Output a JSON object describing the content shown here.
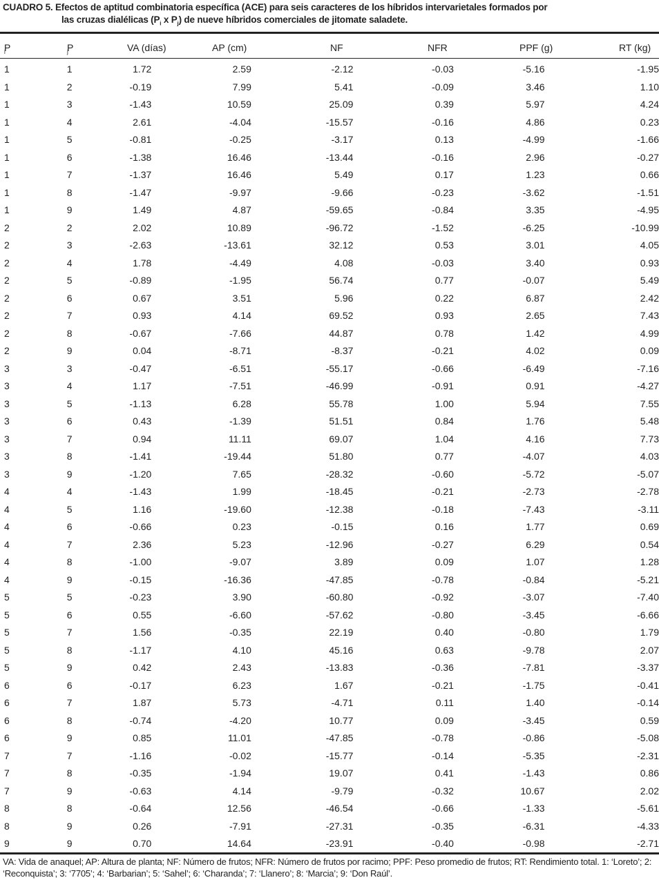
{
  "title": {
    "line1": "CUADRO 5. Efectos de aptitud combinatoria específica (ACE) para seis caracteres de los híbridos intervarietales formados por",
    "line2_a": "las cruzas dialélicas (P",
    "line2_sub1": "i",
    "line2_b": " x P",
    "line2_sub2": "j",
    "line2_c": ") de nueve híbridos comerciales de jitomate saladete."
  },
  "headers": {
    "pi": "P",
    "pi_sub": "i",
    "pj": "P",
    "pj_sub": "j",
    "va": "VA (días)",
    "ap": "AP (cm)",
    "nf": "NF",
    "nfr": "NFR",
    "ppf": "PPF (g)",
    "rt": "RT (kg)"
  },
  "rows": [
    [
      "1",
      "1",
      "1.72",
      "2.59",
      "-2.12",
      "-0.03",
      "-5.16",
      "-1.95"
    ],
    [
      "1",
      "2",
      "-0.19",
      "7.99",
      "5.41",
      "-0.09",
      "3.46",
      "1.10"
    ],
    [
      "1",
      "3",
      "-1.43",
      "10.59",
      "25.09",
      "0.39",
      "5.97",
      "4.24"
    ],
    [
      "1",
      "4",
      "2.61",
      "-4.04",
      "-15.57",
      "-0.16",
      "4.86",
      "0.23"
    ],
    [
      "1",
      "5",
      "-0.81",
      "-0.25",
      "-3.17",
      "0.13",
      "-4.99",
      "-1.66"
    ],
    [
      "1",
      "6",
      "-1.38",
      "16.46",
      "-13.44",
      "-0.16",
      "2.96",
      "-0.27"
    ],
    [
      "1",
      "7",
      "-1.37",
      "16.46",
      "5.49",
      "0.17",
      "1.23",
      "0.66"
    ],
    [
      "1",
      "8",
      "-1.47",
      "-9.97",
      "-9.66",
      "-0.23",
      "-3.62",
      "-1.51"
    ],
    [
      "1",
      "9",
      "1.49",
      "4.87",
      "-59.65",
      "-0.84",
      "3.35",
      "-4.95"
    ],
    [
      "2",
      "2",
      "2.02",
      "10.89",
      "-96.72",
      "-1.52",
      "-6.25",
      "-10.99"
    ],
    [
      "2",
      "3",
      "-2.63",
      "-13.61",
      "32.12",
      "0.53",
      "3.01",
      "4.05"
    ],
    [
      "2",
      "4",
      "1.78",
      "-4.49",
      "4.08",
      "-0.03",
      "3.40",
      "0.93"
    ],
    [
      "2",
      "5",
      "-0.89",
      "-1.95",
      "56.74",
      "0.77",
      "-0.07",
      "5.49"
    ],
    [
      "2",
      "6",
      "0.67",
      "3.51",
      "5.96",
      "0.22",
      "6.87",
      "2.42"
    ],
    [
      "2",
      "7",
      "0.93",
      "4.14",
      "69.52",
      "0.93",
      "2.65",
      "7.43"
    ],
    [
      "2",
      "8",
      "-0.67",
      "-7.66",
      "44.87",
      "0.78",
      "1.42",
      "4.99"
    ],
    [
      "2",
      "9",
      "0.04",
      "-8.71",
      "-8.37",
      "-0.21",
      "4.02",
      "0.09"
    ],
    [
      "3",
      "3",
      "-0.47",
      "-6.51",
      "-55.17",
      "-0.66",
      "-6.49",
      "-7.16"
    ],
    [
      "3",
      "4",
      "1.17",
      "-7.51",
      "-46.99",
      "-0.91",
      "0.91",
      "-4.27"
    ],
    [
      "3",
      "5",
      "-1.13",
      "6.28",
      "55.78",
      "1.00",
      "5.94",
      "7.55"
    ],
    [
      "3",
      "6",
      "0.43",
      "-1.39",
      "51.51",
      "0.84",
      "1.76",
      "5.48"
    ],
    [
      "3",
      "7",
      "0.94",
      "11.11",
      "69.07",
      "1.04",
      "4.16",
      "7.73"
    ],
    [
      "3",
      "8",
      "-1.41",
      "-19.44",
      "51.80",
      "0.77",
      "-4.07",
      "4.03"
    ],
    [
      "3",
      "9",
      "-1.20",
      "7.65",
      "-28.32",
      "-0.60",
      "-5.72",
      "-5.07"
    ],
    [
      "4",
      "4",
      "-1.43",
      "1.99",
      "-18.45",
      "-0.21",
      "-2.73",
      "-2.78"
    ],
    [
      "4",
      "5",
      "1.16",
      "-19.60",
      "-12.38",
      "-0.18",
      "-7.43",
      "-3.11"
    ],
    [
      "4",
      "6",
      "-0.66",
      "0.23",
      "-0.15",
      "0.16",
      "1.77",
      "0.69"
    ],
    [
      "4",
      "7",
      "2.36",
      "5.23",
      "-12.96",
      "-0.27",
      "6.29",
      "0.54"
    ],
    [
      "4",
      "8",
      "-1.00",
      "-9.07",
      "3.89",
      "0.09",
      "1.07",
      "1.28"
    ],
    [
      "4",
      "9",
      "-0.15",
      "-16.36",
      "-47.85",
      "-0.78",
      "-0.84",
      "-5.21"
    ],
    [
      "5",
      "5",
      "-0.23",
      "3.90",
      "-60.80",
      "-0.92",
      "-3.07",
      "-7.40"
    ],
    [
      "5",
      "6",
      "0.55",
      "-6.60",
      "-57.62",
      "-0.80",
      "-3.45",
      "-6.66"
    ],
    [
      "5",
      "7",
      "1.56",
      "-0.35",
      "22.19",
      "0.40",
      "-0.80",
      "1.79"
    ],
    [
      "5",
      "8",
      "-1.17",
      "4.10",
      "45.16",
      "0.63",
      "-9.78",
      "2.07"
    ],
    [
      "5",
      "9",
      "0.42",
      "2.43",
      "-13.83",
      "-0.36",
      "-7.81",
      "-3.37"
    ],
    [
      "6",
      "6",
      "-0.17",
      "6.23",
      "1.67",
      "-0.21",
      "-1.75",
      "-0.41"
    ],
    [
      "6",
      "7",
      "1.87",
      "5.73",
      "-4.71",
      "0.11",
      "1.40",
      "-0.14"
    ],
    [
      "6",
      "8",
      "-0.74",
      "-4.20",
      "10.77",
      "0.09",
      "-3.45",
      "0.59"
    ],
    [
      "6",
      "9",
      "0.85",
      "11.01",
      "-47.85",
      "-0.78",
      "-0.86",
      "-5.08"
    ],
    [
      "7",
      "7",
      "-1.16",
      "-0.02",
      "-15.77",
      "-0.14",
      "-5.35",
      "-2.31"
    ],
    [
      "7",
      "8",
      "-0.35",
      "-1.94",
      "19.07",
      "0.41",
      "-1.43",
      "0.86"
    ],
    [
      "7",
      "9",
      "-0.63",
      "4.14",
      "-9.79",
      "-0.32",
      "10.67",
      "2.02"
    ],
    [
      "8",
      "8",
      "-0.64",
      "12.56",
      "-46.54",
      "-0.66",
      "-1.33",
      "-5.61"
    ],
    [
      "8",
      "9",
      "0.26",
      "-7.91",
      "-27.31",
      "-0.35",
      "-6.31",
      "-4.33"
    ],
    [
      "9",
      "9",
      "0.70",
      "14.64",
      "-23.91",
      "-0.40",
      "-0.98",
      "-2.71"
    ]
  ],
  "footnote": "VA: Vida de anaquel; AP: Altura de planta; NF: Número de frutos; NFR: Número de frutos por racimo; PPF: Peso promedio de frutos; RT: Rendimiento total. 1: ‘Loreto’; 2: ‘Reconquista’; 3: ‘7705’; 4: ‘Barbarian’; 5: ‘Sahel’; 6: ‘Charanda’; 7: ‘Llanero’; 8: ‘Marcia’; 9: ‘Don Raúl’."
}
